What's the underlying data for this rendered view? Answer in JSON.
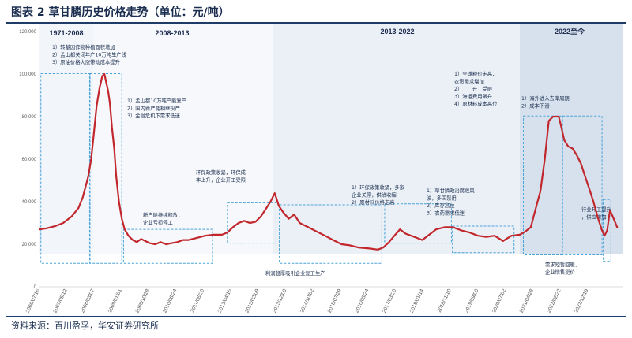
{
  "title": "图表 2 草甘膦历史价格走势（单位：元/吨）",
  "source": "资料来源：百川盈孚，华安证券研究所",
  "colors": {
    "line": "#c1272d",
    "box": "#4aa3d8",
    "band_light": "#f2f6fa",
    "band_mid": "#e4ecf4",
    "band_dark": "#cfdcea",
    "axis_text": "#555555",
    "navy": "#1a2d4e"
  },
  "chart_data": {
    "type": "line",
    "title": "",
    "xlabel": "",
    "ylabel": "",
    "ylim": [
      0,
      120000
    ],
    "y_ticks": [
      "0",
      "20,000",
      "40,000",
      "60,000",
      "80,000",
      "100,000",
      "120,000"
    ],
    "x_ticks": [
      "2006/07/16",
      "2007/05/12",
      "2008/03/07",
      "2009/01/01",
      "2009/10/28",
      "2010/08/24",
      "2011/06/20",
      "2012/04/15",
      "2013/02/09",
      "2013/12/06",
      "2014/10/02",
      "2015/07/29",
      "2016/05/24",
      "2017/03/20",
      "2018/01/14",
      "2018/11/10",
      "2019/09/06",
      "2020/07/02",
      "2021/04/28",
      "2022/02/22",
      "2022/12/19"
    ],
    "periods": [
      "1971-2008",
      "2008-2013",
      "2013-2022",
      "2022至今"
    ],
    "series": [
      {
        "values": [
          {
            "x": "2006-07-16",
            "y": 27000
          },
          {
            "x": "2006-10-01",
            "y": 27500
          },
          {
            "x": "2007-01-01",
            "y": 28500
          },
          {
            "x": "2007-04-01",
            "y": 30000
          },
          {
            "x": "2007-07-01",
            "y": 33000
          },
          {
            "x": "2007-09-15",
            "y": 37000
          },
          {
            "x": "2007-11-01",
            "y": 42000
          },
          {
            "x": "2008-01-01",
            "y": 52000
          },
          {
            "x": "2008-02-01",
            "y": 60000
          },
          {
            "x": "2008-03-01",
            "y": 72000
          },
          {
            "x": "2008-04-01",
            "y": 85000
          },
          {
            "x": "2008-05-01",
            "y": 93000
          },
          {
            "x": "2008-06-01",
            "y": 99000
          },
          {
            "x": "2008-06-25",
            "y": 100000
          },
          {
            "x": "2008-07-15",
            "y": 96000
          },
          {
            "x": "2008-08-05",
            "y": 92000
          },
          {
            "x": "2008-08-25",
            "y": 86000
          },
          {
            "x": "2008-09-15",
            "y": 75000
          },
          {
            "x": "2008-10-10",
            "y": 65000
          },
          {
            "x": "2008-11-01",
            "y": 52000
          },
          {
            "x": "2008-12-01",
            "y": 40000
          },
          {
            "x": "2009-01-01",
            "y": 32000
          },
          {
            "x": "2009-02-01",
            "y": 27000
          },
          {
            "x": "2009-03-15",
            "y": 24000
          },
          {
            "x": "2009-05-01",
            "y": 22000
          },
          {
            "x": "2009-06-15",
            "y": 21000
          },
          {
            "x": "2009-08-01",
            "y": 22500
          },
          {
            "x": "2009-09-15",
            "y": 21500
          },
          {
            "x": "2009-11-01",
            "y": 20500
          },
          {
            "x": "2010-01-01",
            "y": 20000
          },
          {
            "x": "2010-03-01",
            "y": 21000
          },
          {
            "x": "2010-05-01",
            "y": 20000
          },
          {
            "x": "2010-07-01",
            "y": 20500
          },
          {
            "x": "2010-09-01",
            "y": 21000
          },
          {
            "x": "2010-11-01",
            "y": 22000
          },
          {
            "x": "2011-01-01",
            "y": 22000
          },
          {
            "x": "2011-04-01",
            "y": 23000
          },
          {
            "x": "2011-07-01",
            "y": 24000
          },
          {
            "x": "2011-10-01",
            "y": 24500
          },
          {
            "x": "2012-01-01",
            "y": 24500
          },
          {
            "x": "2012-03-01",
            "y": 25500
          },
          {
            "x": "2012-05-01",
            "y": 28000
          },
          {
            "x": "2012-07-01",
            "y": 30000
          },
          {
            "x": "2012-09-01",
            "y": 31000
          },
          {
            "x": "2012-11-01",
            "y": 30000
          },
          {
            "x": "2013-01-01",
            "y": 30500
          },
          {
            "x": "2013-03-01",
            "y": 33000
          },
          {
            "x": "2013-05-01",
            "y": 37000
          },
          {
            "x": "2013-06-15",
            "y": 40000
          },
          {
            "x": "2013-08-01",
            "y": 44000
          },
          {
            "x": "2013-09-15",
            "y": 38000
          },
          {
            "x": "2013-11-01",
            "y": 35000
          },
          {
            "x": "2014-01-01",
            "y": 32000
          },
          {
            "x": "2014-03-01",
            "y": 34000
          },
          {
            "x": "2014-05-01",
            "y": 30000
          },
          {
            "x": "2014-08-01",
            "y": 28000
          },
          {
            "x": "2014-11-01",
            "y": 26000
          },
          {
            "x": "2015-02-01",
            "y": 24000
          },
          {
            "x": "2015-05-01",
            "y": 22000
          },
          {
            "x": "2015-08-01",
            "y": 20000
          },
          {
            "x": "2015-11-01",
            "y": 19500
          },
          {
            "x": "2016-02-01",
            "y": 18500
          },
          {
            "x": "2016-06-01",
            "y": 18000
          },
          {
            "x": "2016-09-01",
            "y": 17500
          },
          {
            "x": "2016-11-01",
            "y": 18500
          },
          {
            "x": "2017-01-01",
            "y": 21000
          },
          {
            "x": "2017-03-01",
            "y": 24000
          },
          {
            "x": "2017-05-01",
            "y": 27000
          },
          {
            "x": "2017-07-01",
            "y": 25000
          },
          {
            "x": "2017-09-01",
            "y": 24000
          },
          {
            "x": "2017-11-01",
            "y": 23000
          },
          {
            "x": "2018-01-01",
            "y": 22000
          },
          {
            "x": "2018-03-01",
            "y": 24000
          },
          {
            "x": "2018-06-01",
            "y": 27000
          },
          {
            "x": "2018-09-01",
            "y": 28000
          },
          {
            "x": "2018-12-01",
            "y": 28000
          },
          {
            "x": "2019-03-01",
            "y": 26500
          },
          {
            "x": "2019-06-01",
            "y": 25500
          },
          {
            "x": "2019-09-01",
            "y": 24000
          },
          {
            "x": "2019-12-01",
            "y": 23500
          },
          {
            "x": "2020-03-01",
            "y": 24000
          },
          {
            "x": "2020-06-01",
            "y": 21500
          },
          {
            "x": "2020-09-01",
            "y": 24000
          },
          {
            "x": "2020-12-01",
            "y": 24500
          },
          {
            "x": "2021-02-01",
            "y": 26000
          },
          {
            "x": "2021-04-01",
            "y": 28000
          },
          {
            "x": "2021-06-01",
            "y": 38000
          },
          {
            "x": "2021-07-15",
            "y": 45000
          },
          {
            "x": "2021-09-01",
            "y": 60000
          },
          {
            "x": "2021-10-15",
            "y": 78000
          },
          {
            "x": "2021-12-01",
            "y": 80000
          },
          {
            "x": "2022-02-01",
            "y": 80000
          },
          {
            "x": "2022-03-01",
            "y": 75000
          },
          {
            "x": "2022-04-01",
            "y": 69000
          },
          {
            "x": "2022-05-15",
            "y": 66000
          },
          {
            "x": "2022-07-01",
            "y": 65000
          },
          {
            "x": "2022-08-15",
            "y": 62000
          },
          {
            "x": "2022-10-01",
            "y": 58000
          },
          {
            "x": "2022-11-15",
            "y": 52000
          },
          {
            "x": "2023-01-01",
            "y": 46000
          },
          {
            "x": "2023-02-15",
            "y": 40000
          },
          {
            "x": "2023-04-01",
            "y": 33000
          },
          {
            "x": "2023-05-15",
            "y": 27000
          },
          {
            "x": "2023-06-15",
            "y": 24000
          },
          {
            "x": "2023-07-15",
            "y": 26500
          },
          {
            "x": "2023-08-15",
            "y": 36000
          },
          {
            "x": "2023-09-15",
            "y": 33000
          },
          {
            "x": "2023-11-01",
            "y": 28000
          }
        ]
      }
    ],
    "annotations": [
      {
        "lines": [
          "1）转基因作物种植面积增加",
          "2）孟山都关闭年产10万吨生产线",
          "3）原油价格大涨带动成本提升"
        ]
      },
      {
        "lines": [
          "1）孟山都10万吨产能复产",
          "2）国内新产能相继投产",
          "3）金融危机下需求低迷"
        ]
      },
      {
        "lines": [
          "新产能持续释放，",
          "企业亏损停工"
        ]
      },
      {
        "lines": [
          "环保政策收紧，环保成",
          "本上升，企业开工受限"
        ]
      },
      {
        "lines": [
          "利润趋厚吸引企业复工生产"
        ]
      },
      {
        "lines": [
          "1）环保政策收紧，多家",
          "企业关停，供给收缩",
          "2）原材料价格走高"
        ]
      },
      {
        "lines": [
          "1）草甘膦政治腐败风",
          "波，多国禁用",
          "2）库存高位",
          "3）农药需求低迷"
        ]
      },
      {
        "lines": [
          "1）全球粮价走高，",
          "农资需求增加",
          "2）工厂开工受限",
          "3）海运费用飙升",
          "4）原材料成本高位"
        ]
      },
      {
        "lines": [
          "1）海外进入去库周期",
          "2）成本下滑"
        ]
      },
      {
        "lines": [
          "行业开工提升",
          "，供应增加"
        ]
      },
      {
        "lines": [
          "需求短暂回暖，",
          "企业惜售挺价"
        ]
      }
    ]
  }
}
